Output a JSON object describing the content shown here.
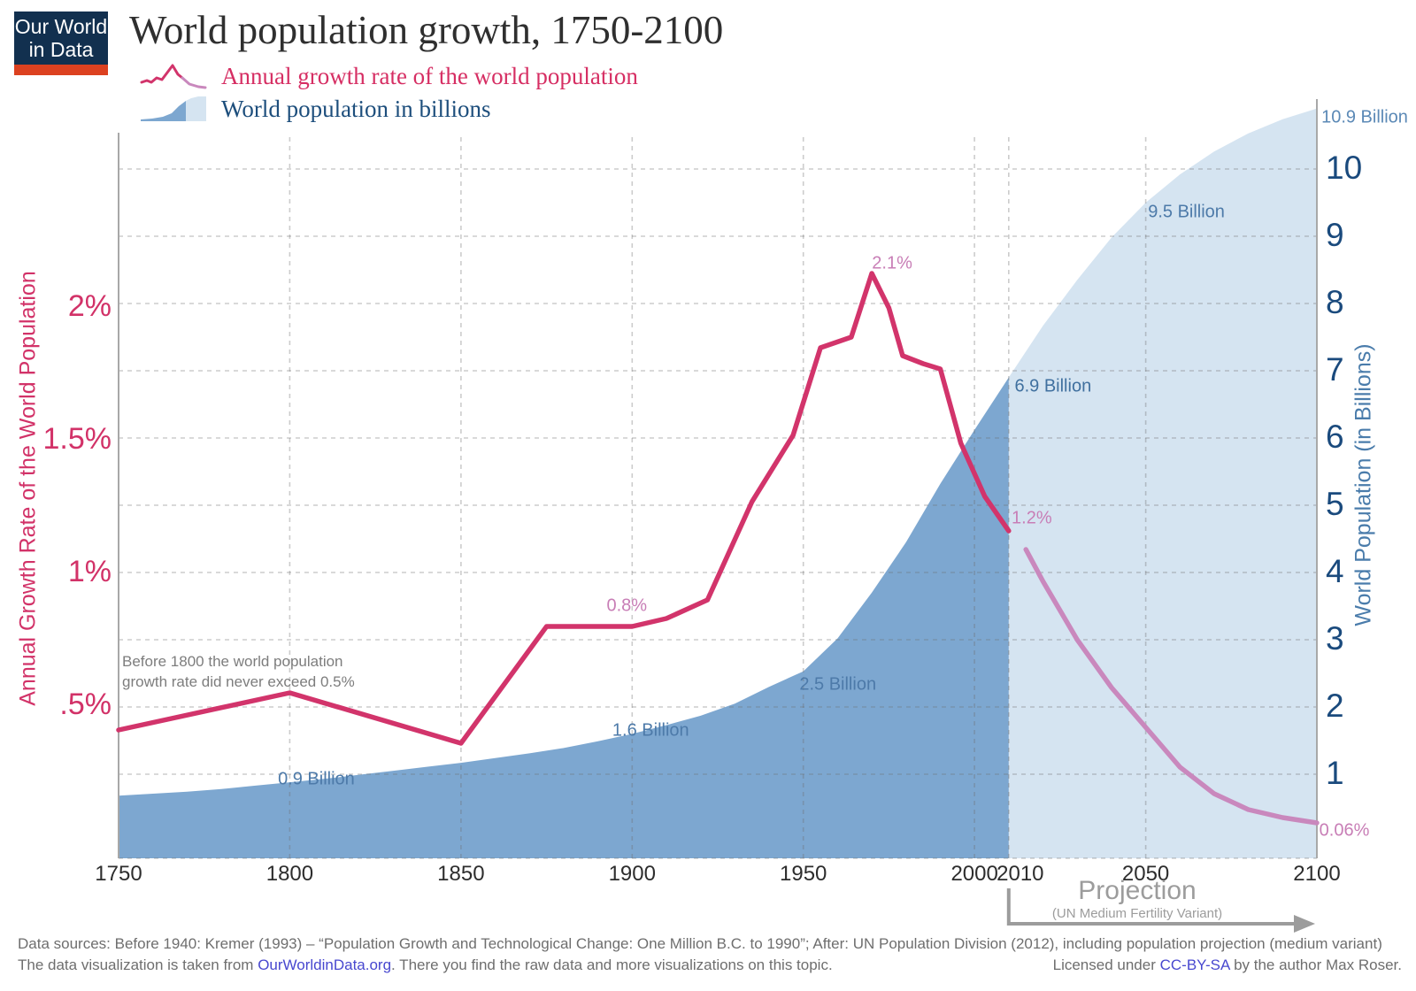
{
  "logo": {
    "line1": "Our World",
    "line2": "in Data"
  },
  "header": {
    "title": "World population growth, 1750-2100"
  },
  "legend": [
    {
      "label": "Annual growth rate of the world population"
    },
    {
      "label": "World population in billions"
    }
  ],
  "axes": {
    "left": {
      "title": "Annual Growth Rate of the World Population",
      "ticks": [
        "2%",
        "1.5%",
        "1%",
        ".5%"
      ],
      "tick_values": [
        2,
        1.5,
        1,
        0.5
      ]
    },
    "right": {
      "title": "World Population (in Billions)",
      "ticks": [
        10,
        9,
        8,
        7,
        6,
        5,
        4,
        3,
        2,
        1
      ]
    },
    "x": {
      "ticks": [
        1750,
        1800,
        1850,
        1900,
        1950,
        2000,
        2010,
        2050,
        2100
      ]
    }
  },
  "note": {
    "line1": "Before 1800 the world population",
    "line2": "growth rate did never exceed 0.5%"
  },
  "projection": {
    "label": "Projection",
    "sublabel": "(UN Medium Fertility Variant)"
  },
  "annotations": {
    "growth_rate": [
      {
        "text": "2.1%",
        "year": 1970,
        "value": 2.1
      },
      {
        "text": "0.8%",
        "year": 1900,
        "value": 0.8
      },
      {
        "text": "1.2%",
        "year": 2010,
        "value": 1.2
      },
      {
        "text": "0.06%",
        "year": 2100,
        "value": 0.06
      }
    ],
    "population": [
      {
        "text": "0.9 Billion",
        "year": 1800,
        "value": 0.9
      },
      {
        "text": "1.6 Billion",
        "year": 1900,
        "value": 1.6
      },
      {
        "text": "2.5 Billion",
        "year": 1950,
        "value": 2.5
      },
      {
        "text": "6.9 Billion",
        "year": 2010,
        "value": 6.9
      },
      {
        "text": "9.5 Billion",
        "year": 2050,
        "value": 9.5
      },
      {
        "text": "10.9 Billion",
        "year": 2100,
        "value": 10.9
      }
    ]
  },
  "footer": {
    "sources": "Data sources:  Before 1940: Kremer (1993) – “Population Growth and Technological Change: One Million B.C. to 1990”; After: UN Population Division (2012), including population projection (medium variant)",
    "line2_pre": "The data visualization is taken from ",
    "line2_link": "OurWorldinData.org",
    "line2_post": ". There you find the raw data and more visualizations on this topic.",
    "license_pre": "Licensed under ",
    "license_link": "CC-BY-SA",
    "license_post": " by the author Max Roser."
  },
  "chart_data": {
    "type": "combo",
    "title": "World population growth, 1750-2100",
    "x_range": [
      1750,
      2100
    ],
    "grid": true,
    "left_axis": {
      "label": "Annual Growth Rate of the World Population",
      "unit": "%",
      "range": [
        0,
        2.65
      ],
      "gridline_step": 0.25
    },
    "right_axis": {
      "label": "World Population (in Billions)",
      "unit": "billion",
      "range": [
        0,
        10.9
      ],
      "gridline_step": 1
    },
    "projection_start_year": 2010,
    "series": [
      {
        "name": "growth_rate_historic",
        "type": "line",
        "axis": "left",
        "color": "#d2346b",
        "points": [
          [
            1750,
            0.41
          ],
          [
            1800,
            0.55
          ],
          [
            1850,
            0.36
          ],
          [
            1875,
            0.8
          ],
          [
            1900,
            0.8
          ],
          [
            1910,
            0.83
          ],
          [
            1922,
            0.9
          ],
          [
            1935,
            1.27
          ],
          [
            1947,
            1.52
          ],
          [
            1955,
            1.85
          ],
          [
            1964,
            1.89
          ],
          [
            1970,
            2.13
          ],
          [
            1975,
            2.0
          ],
          [
            1979,
            1.82
          ],
          [
            1985,
            1.79
          ],
          [
            1990,
            1.77
          ],
          [
            1996,
            1.49
          ],
          [
            2003,
            1.29
          ],
          [
            2010,
            1.16
          ]
        ]
      },
      {
        "name": "growth_rate_projection",
        "type": "line",
        "axis": "left",
        "color": "#c988bd",
        "points": [
          [
            2015,
            1.09
          ],
          [
            2020,
            0.97
          ],
          [
            2030,
            0.75
          ],
          [
            2040,
            0.57
          ],
          [
            2050,
            0.42
          ],
          [
            2060,
            0.27
          ],
          [
            2070,
            0.17
          ],
          [
            2080,
            0.11
          ],
          [
            2090,
            0.08
          ],
          [
            2100,
            0.06
          ]
        ]
      },
      {
        "name": "population_historic",
        "type": "area",
        "axis": "right",
        "color": "#7da7d0",
        "points": [
          [
            1750,
            0.68
          ],
          [
            1760,
            0.71
          ],
          [
            1770,
            0.74
          ],
          [
            1780,
            0.78
          ],
          [
            1790,
            0.83
          ],
          [
            1800,
            0.88
          ],
          [
            1810,
            0.93
          ],
          [
            1820,
            0.99
          ],
          [
            1830,
            1.05
          ],
          [
            1840,
            1.11
          ],
          [
            1850,
            1.17
          ],
          [
            1860,
            1.24
          ],
          [
            1870,
            1.31
          ],
          [
            1880,
            1.39
          ],
          [
            1890,
            1.49
          ],
          [
            1900,
            1.6
          ],
          [
            1910,
            1.73
          ],
          [
            1920,
            1.87
          ],
          [
            1930,
            2.05
          ],
          [
            1940,
            2.3
          ],
          [
            1950,
            2.53
          ],
          [
            1960,
            3.02
          ],
          [
            1970,
            3.7
          ],
          [
            1980,
            4.45
          ],
          [
            1990,
            5.32
          ],
          [
            2000,
            6.12
          ],
          [
            2010,
            6.9
          ]
        ]
      },
      {
        "name": "population_projection",
        "type": "area",
        "axis": "right",
        "color": "#d5e4f1",
        "points": [
          [
            2010,
            6.9
          ],
          [
            2020,
            7.67
          ],
          [
            2030,
            8.35
          ],
          [
            2040,
            8.98
          ],
          [
            2050,
            9.5
          ],
          [
            2060,
            9.92
          ],
          [
            2070,
            10.26
          ],
          [
            2080,
            10.53
          ],
          [
            2090,
            10.74
          ],
          [
            2100,
            10.9
          ]
        ]
      }
    ]
  }
}
